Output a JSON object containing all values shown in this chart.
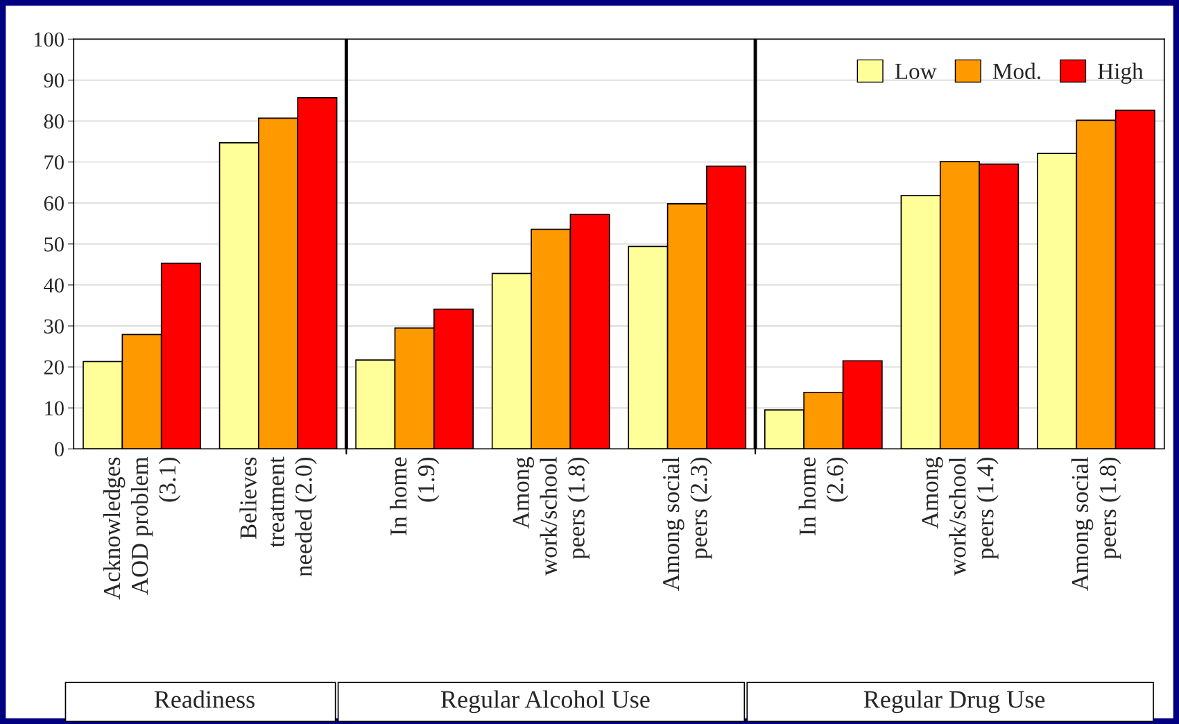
{
  "chart_data": {
    "type": "bar",
    "categories": [
      "Acknowledges\nAOD problem\n(3.1)",
      "Believes\ntreatment\nneeded (2.0)",
      "In home\n(1.9)",
      "Among\nwork/school\npeers (1.8)",
      "Among social\npeers (2.3)",
      "In home\n(2.6)",
      "Among\nwork/school\npeers (1.4)",
      "Among social\npeers (1.8)"
    ],
    "series": [
      {
        "name": "Low",
        "color": "#ffff99",
        "values": [
          21.3,
          74.7,
          21.7,
          42.8,
          49.4,
          9.5,
          61.8,
          72.1
        ]
      },
      {
        "name": "Mod.",
        "color": "#ff9900",
        "values": [
          27.9,
          80.7,
          29.5,
          53.6,
          59.8,
          13.8,
          70.1,
          80.2
        ]
      },
      {
        "name": "High",
        "color": "#ff0000",
        "values": [
          45.3,
          85.7,
          34.1,
          57.2,
          69.0,
          21.5,
          69.5,
          82.6
        ]
      }
    ],
    "ylim": [
      0,
      100
    ],
    "yticks": [
      0,
      10,
      20,
      30,
      40,
      50,
      60,
      70,
      80,
      90,
      100
    ],
    "grid": "y",
    "legend": "top right",
    "annotations": [
      "Readiness",
      "Regular Alcohol Use",
      "Regular Drug Use"
    ]
  }
}
